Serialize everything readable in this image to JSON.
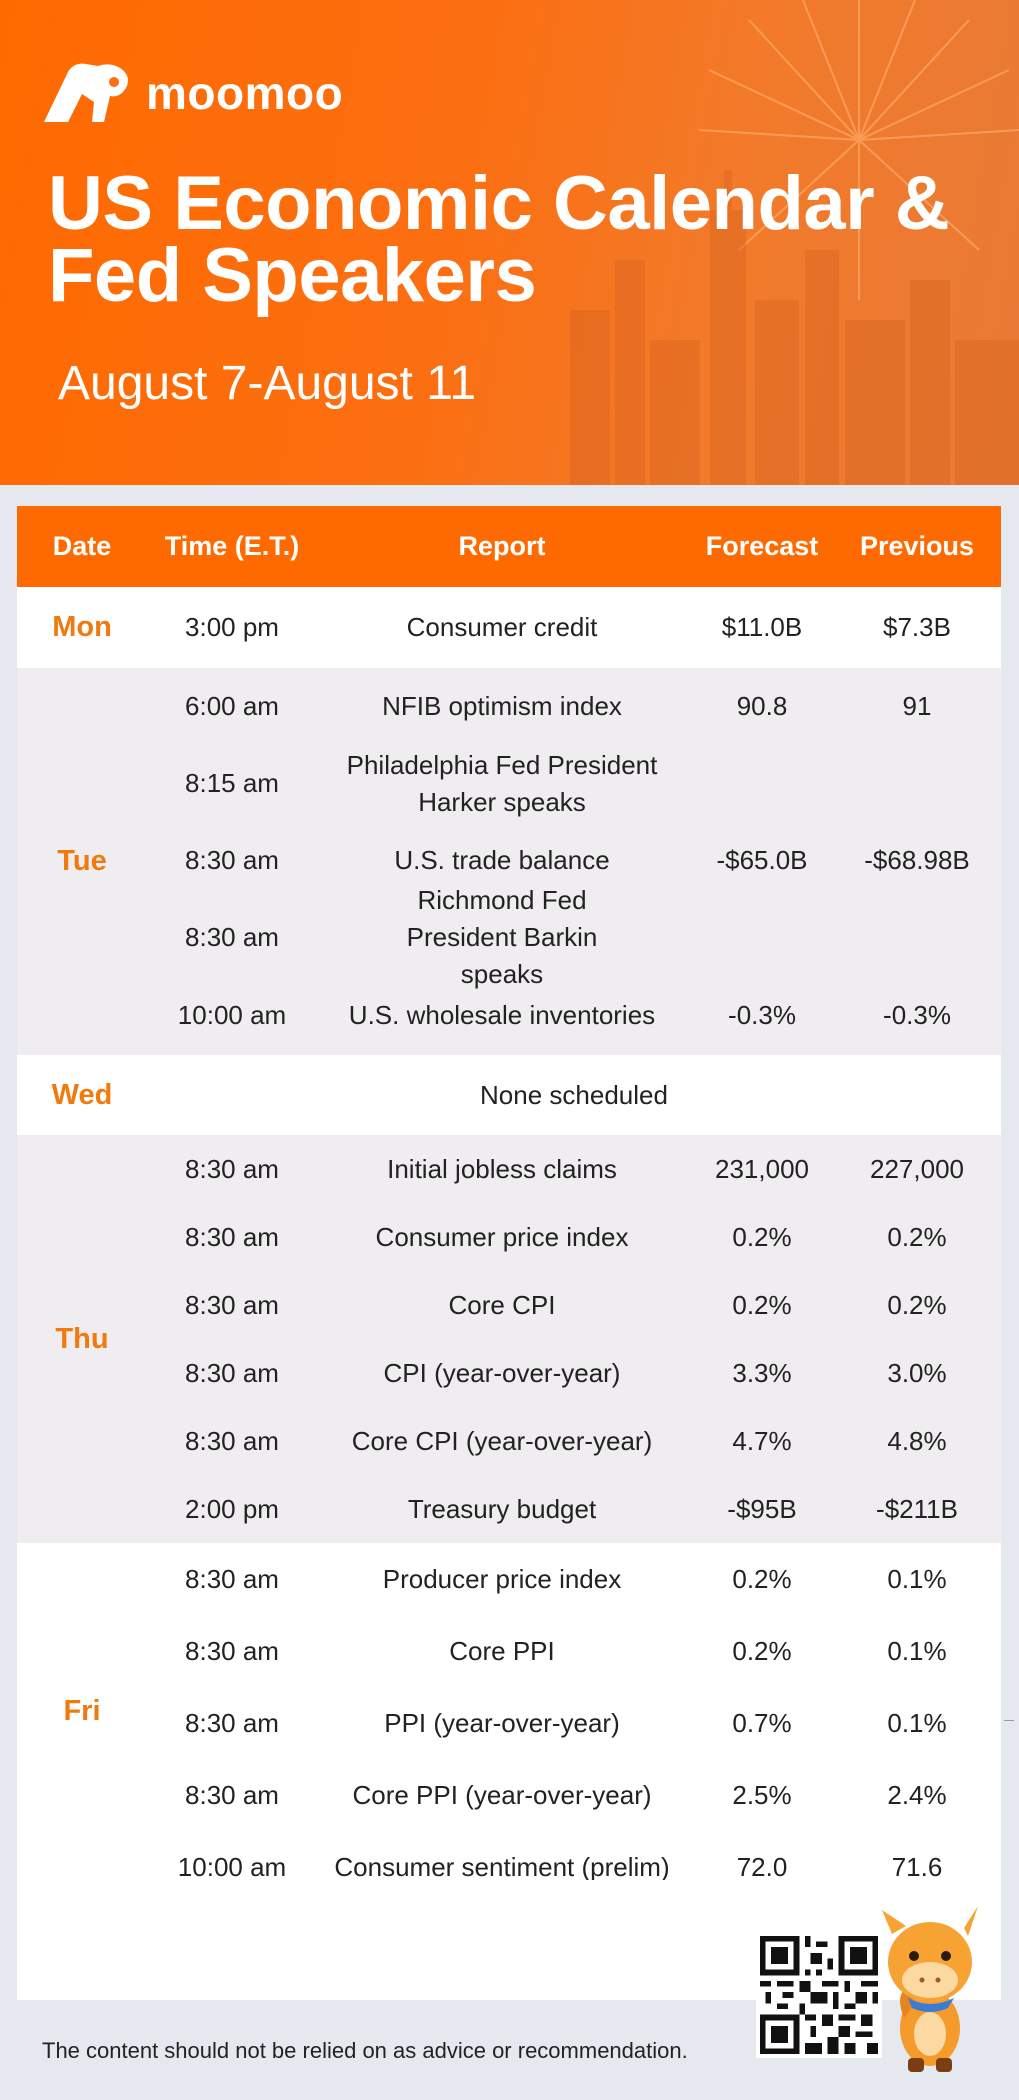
{
  "brand": {
    "name": "moomoo"
  },
  "header": {
    "title": "US Economic Calendar & Fed Speakers",
    "subtitle": "August 7-August 11"
  },
  "table": {
    "headers": [
      "Date",
      "Time (E.T.)",
      "Report",
      "Forecast",
      "Previous"
    ],
    "days": [
      {
        "day": "Mon",
        "rows": [
          {
            "time": "3:00 pm",
            "report": "Consumer credit",
            "forecast": "$11.0B",
            "previous": "$7.3B"
          }
        ]
      },
      {
        "day": "Tue",
        "rows": [
          {
            "time": "6:00 am",
            "report": "NFIB optimism index",
            "forecast": "90.8",
            "previous": "91"
          },
          {
            "time": "8:15 am",
            "report": "Philadelphia Fed President Harker speaks",
            "forecast": "",
            "previous": ""
          },
          {
            "time": "8:30 am",
            "report": "U.S. trade balance",
            "forecast": "-$65.0B",
            "previous": "-$68.98B"
          },
          {
            "time": "8:30 am",
            "report": "Richmond Fed President Barkin speaks",
            "forecast": "",
            "previous": ""
          },
          {
            "time": "10:00 am",
            "report": "U.S. wholesale inventories",
            "forecast": "-0.3%",
            "previous": "-0.3%"
          }
        ]
      },
      {
        "day": "Wed",
        "note": "None scheduled",
        "rows": []
      },
      {
        "day": "Thu",
        "rows": [
          {
            "time": "8:30 am",
            "report": "Initial jobless claims",
            "forecast": "231,000",
            "previous": "227,000"
          },
          {
            "time": "8:30 am",
            "report": "Consumer price index",
            "forecast": "0.2%",
            "previous": "0.2%"
          },
          {
            "time": "8:30 am",
            "report": "Core CPI",
            "forecast": "0.2%",
            "previous": "0.2%"
          },
          {
            "time": "8:30 am",
            "report": "CPI (year-over-year)",
            "forecast": "3.3%",
            "previous": "3.0%"
          },
          {
            "time": "8:30 am",
            "report": "Core CPI (year-over-year)",
            "forecast": "4.7%",
            "previous": "4.8%"
          },
          {
            "time": "2:00 pm",
            "report": "Treasury budget",
            "forecast": "-$95B",
            "previous": "-$211B"
          }
        ]
      },
      {
        "day": "Fri",
        "rows": [
          {
            "time": "8:30 am",
            "report": "Producer price index",
            "forecast": "0.2%",
            "previous": "0.1%"
          },
          {
            "time": "8:30 am",
            "report": "Core PPI",
            "forecast": "0.2%",
            "previous": "0.1%"
          },
          {
            "time": "8:30 am",
            "report": "PPI (year-over-year)",
            "forecast": "0.7%",
            "previous": "0.1%"
          },
          {
            "time": "8:30 am",
            "report": "Core PPI (year-over-year)",
            "forecast": "2.5%",
            "previous": "2.4%"
          },
          {
            "time": "10:00 am",
            "report": "Consumer sentiment (prelim)",
            "forecast": "72.0",
            "previous": "71.6"
          }
        ]
      }
    ]
  },
  "footer": {
    "disclaimer": "The content should not be relied on as advice or recommendation."
  },
  "colors": {
    "brand_orange": "#ff6a00",
    "day_orange": "#f07a0e",
    "row_gray": "#efedef",
    "page_bg": "#e5e9ef"
  },
  "icons": {
    "logo": "moomoo-bull-logo",
    "qr": "qr-code",
    "mascot": "moomoo-mascot"
  }
}
